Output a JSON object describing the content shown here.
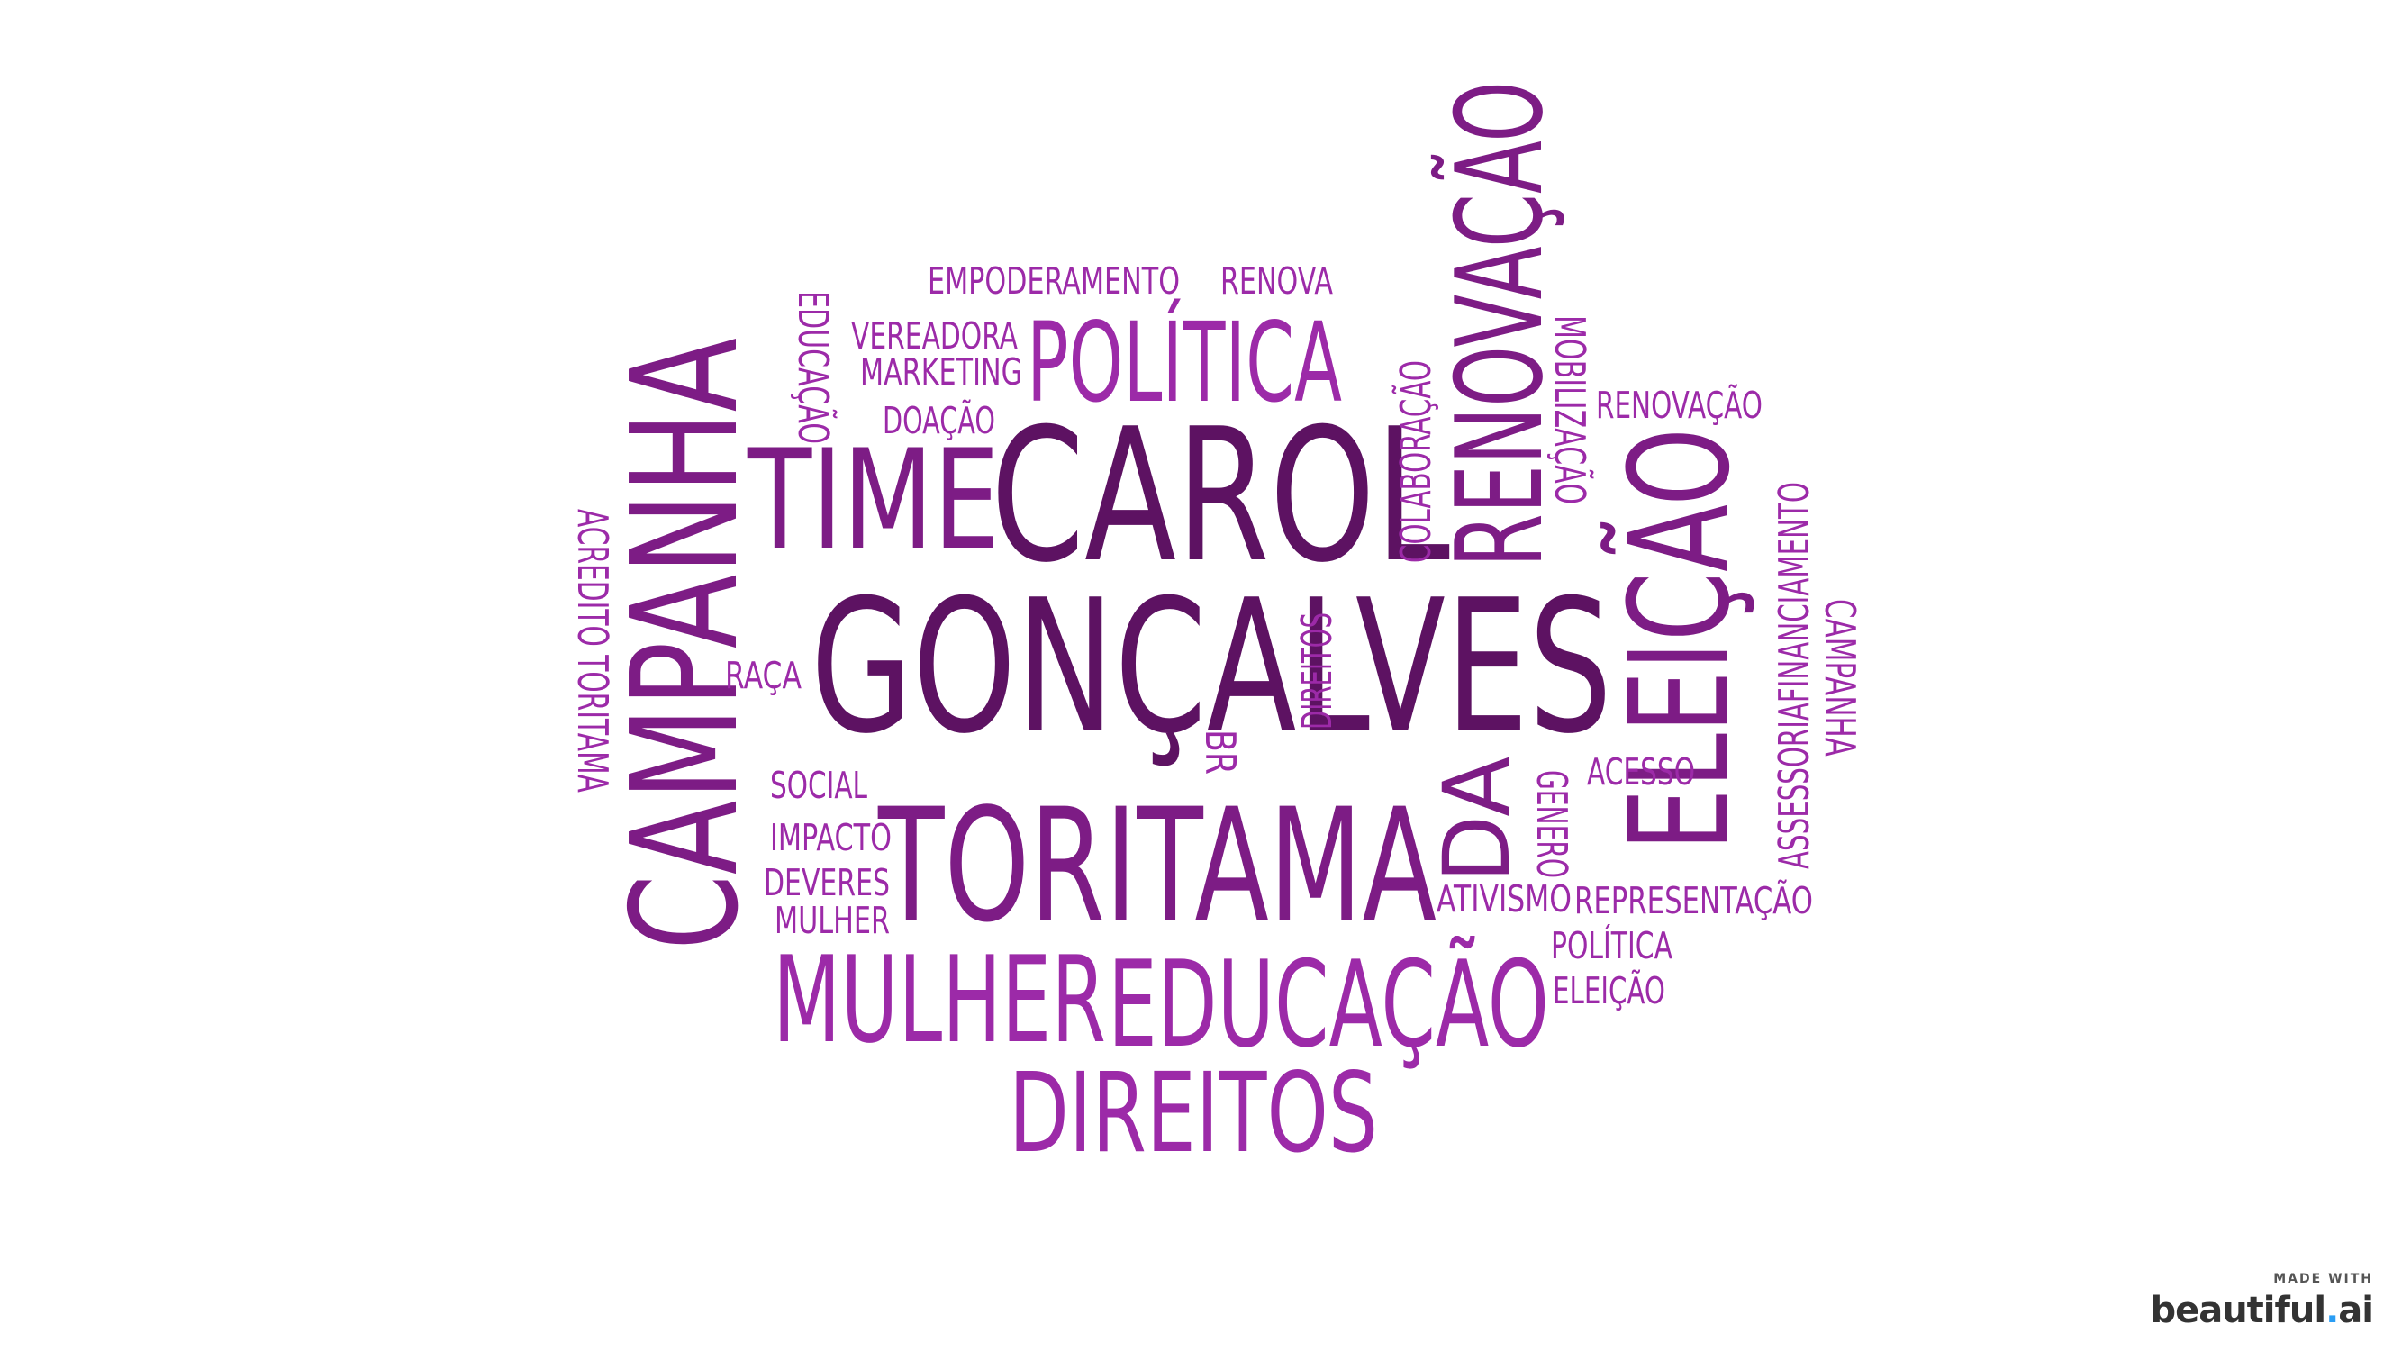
{
  "colors": {
    "dark": "#5d1262",
    "mid": "#7d1c85",
    "light": "#9c2aa8",
    "accent": "#2a9df4"
  },
  "words": [
    {
      "text": "GONÇALVES",
      "tone": "dark"
    },
    {
      "text": "CAROL",
      "tone": "dark"
    },
    {
      "text": "TORITAMA",
      "tone": "mid"
    },
    {
      "text": "TIME",
      "tone": "mid"
    },
    {
      "text": "CAMPANHA",
      "tone": "mid"
    },
    {
      "text": "POLÍTICA",
      "tone": "light"
    },
    {
      "text": "RENOVAÇÃO",
      "tone": "mid"
    },
    {
      "text": "ELEIÇÃO",
      "tone": "mid"
    },
    {
      "text": "DA",
      "tone": "mid"
    },
    {
      "text": "MULHER",
      "tone": "light"
    },
    {
      "text": "EDUCAÇÃO",
      "tone": "light"
    },
    {
      "text": "DIREITOS",
      "tone": "light"
    },
    {
      "text": "EMPODERAMENTO",
      "tone": "light"
    },
    {
      "text": "RENOVA",
      "tone": "light"
    },
    {
      "text": "VEREADORA",
      "tone": "light"
    },
    {
      "text": "MARKETING",
      "tone": "light"
    },
    {
      "text": "DOAÇÃO",
      "tone": "light"
    },
    {
      "text": "EDUCAÇÃO",
      "tone": "light"
    },
    {
      "text": "ACREDITO TORITAMA",
      "tone": "light"
    },
    {
      "text": "RAÇA",
      "tone": "light"
    },
    {
      "text": "SOCIAL",
      "tone": "light"
    },
    {
      "text": "IMPACTO",
      "tone": "light"
    },
    {
      "text": "DEVERES",
      "tone": "light"
    },
    {
      "text": "MULHER",
      "tone": "light"
    },
    {
      "text": "COLABORAÇÃO",
      "tone": "light"
    },
    {
      "text": "MOBILIZAÇÃO",
      "tone": "light"
    },
    {
      "text": "DIREITOS",
      "tone": "light"
    },
    {
      "text": "BR",
      "tone": "light"
    },
    {
      "text": "RENOVAÇÃO",
      "tone": "light"
    },
    {
      "text": "ACESSO",
      "tone": "light"
    },
    {
      "text": "GENERO",
      "tone": "light"
    },
    {
      "text": "ATIVISMO",
      "tone": "light"
    },
    {
      "text": "REPRESENTAÇÃO",
      "tone": "light"
    },
    {
      "text": "POLÍTICA",
      "tone": "light"
    },
    {
      "text": "ELEIÇÃO",
      "tone": "light"
    },
    {
      "text": "ASSESSORIAFINANCIAMENTO",
      "tone": "light"
    },
    {
      "text": "CAMPANHA",
      "tone": "light"
    }
  ],
  "badge": {
    "made_with": "MADE WITH",
    "brand_main": "beautiful",
    "brand_dot": ".",
    "brand_tld": "ai"
  }
}
